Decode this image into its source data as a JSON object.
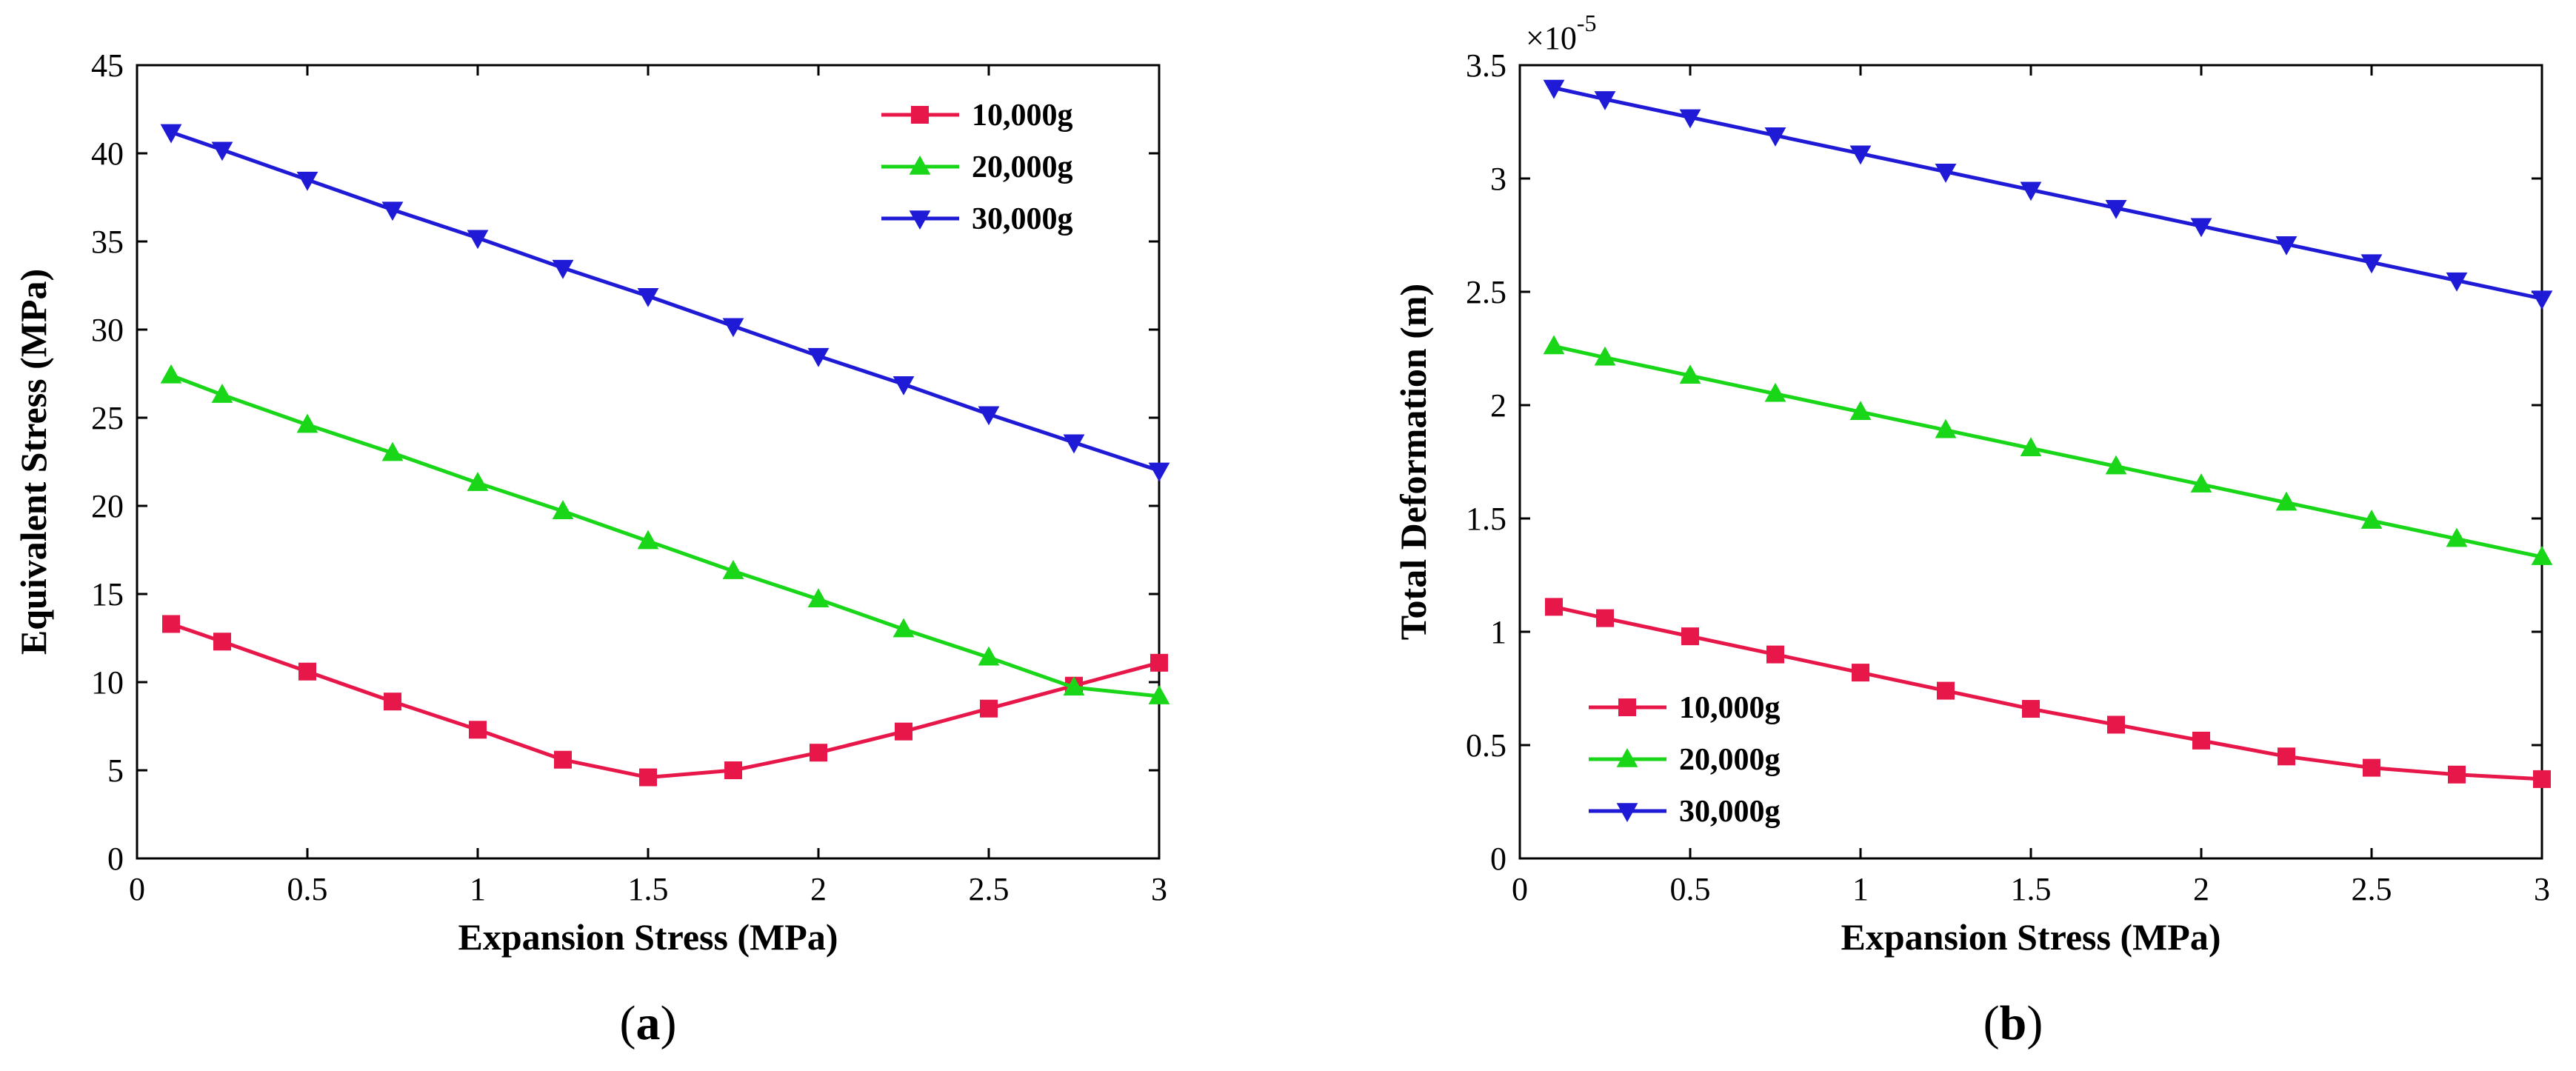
{
  "chart_data": [
    {
      "type": "line",
      "panel_label": "a",
      "xlabel": "Expansion Stress (MPa)",
      "ylabel": "Equivalent Stress (MPa)",
      "xlim": [
        0,
        3
      ],
      "ylim": [
        0,
        45
      ],
      "xticks": [
        0,
        0.5,
        1,
        1.5,
        2,
        2.5,
        3
      ],
      "xtick_labels": [
        "0",
        "0.5",
        "1",
        "1.5",
        "2",
        "2.5",
        "3"
      ],
      "yticks": [
        0,
        5,
        10,
        15,
        20,
        25,
        30,
        35,
        40,
        45
      ],
      "ytick_labels": [
        "0",
        "5",
        "10",
        "15",
        "20",
        "25",
        "30",
        "35",
        "40",
        "45"
      ],
      "legend_position": "top-right",
      "x": [
        0.1,
        0.25,
        0.5,
        0.75,
        1,
        1.25,
        1.5,
        1.75,
        2,
        2.25,
        2.5,
        2.75,
        3
      ],
      "series": [
        {
          "name": "10,000g",
          "color": "#e8174a",
          "marker": "square",
          "values": [
            13.3,
            12.3,
            10.6,
            8.9,
            7.3,
            5.6,
            4.6,
            5.0,
            6.0,
            7.2,
            8.5,
            9.8,
            11.1
          ]
        },
        {
          "name": "20,000g",
          "color": "#19d619",
          "marker": "triangle-up",
          "values": [
            27.4,
            26.3,
            24.6,
            23.0,
            21.3,
            19.7,
            18.0,
            16.3,
            14.7,
            13.0,
            11.4,
            9.7,
            9.2
          ]
        },
        {
          "name": "30,000g",
          "color": "#1f1ad6",
          "marker": "triangle-down",
          "values": [
            41.2,
            40.2,
            38.5,
            36.8,
            35.2,
            33.5,
            31.9,
            30.2,
            28.5,
            26.9,
            25.2,
            23.6,
            22.0
          ]
        }
      ]
    },
    {
      "type": "line",
      "panel_label": "b",
      "xlabel": "Expansion Stress (MPa)",
      "ylabel": "Total Deformation (m)",
      "y_scale_label": "×10",
      "y_scale_exponent": "-5",
      "xlim": [
        0,
        3
      ],
      "ylim": [
        0,
        3.5
      ],
      "xticks": [
        0,
        0.5,
        1,
        1.5,
        2,
        2.5,
        3
      ],
      "xtick_labels": [
        "0",
        "0.5",
        "1",
        "1.5",
        "2",
        "2.5",
        "3"
      ],
      "yticks": [
        0,
        0.5,
        1,
        1.5,
        2,
        2.5,
        3,
        3.5
      ],
      "ytick_labels": [
        "0",
        "0.5",
        "1",
        "1.5",
        "2",
        "2.5",
        "3",
        "3.5"
      ],
      "legend_position": "bottom-left",
      "x": [
        0.1,
        0.25,
        0.5,
        0.75,
        1,
        1.25,
        1.5,
        1.75,
        2,
        2.25,
        2.5,
        2.75,
        3
      ],
      "series": [
        {
          "name": "10,000g",
          "color": "#e8174a",
          "marker": "square",
          "values": [
            1.11,
            1.06,
            0.98,
            0.9,
            0.82,
            0.74,
            0.66,
            0.59,
            0.52,
            0.45,
            0.4,
            0.37,
            0.35
          ]
        },
        {
          "name": "20,000g",
          "color": "#19d619",
          "marker": "triangle-up",
          "values": [
            2.26,
            2.21,
            2.13,
            2.05,
            1.97,
            1.89,
            1.81,
            1.73,
            1.65,
            1.57,
            1.49,
            1.41,
            1.33
          ]
        },
        {
          "name": "30,000g",
          "color": "#1f1ad6",
          "marker": "triangle-down",
          "values": [
            3.4,
            3.35,
            3.27,
            3.19,
            3.11,
            3.03,
            2.95,
            2.87,
            2.79,
            2.71,
            2.63,
            2.55,
            2.47
          ]
        }
      ]
    }
  ]
}
